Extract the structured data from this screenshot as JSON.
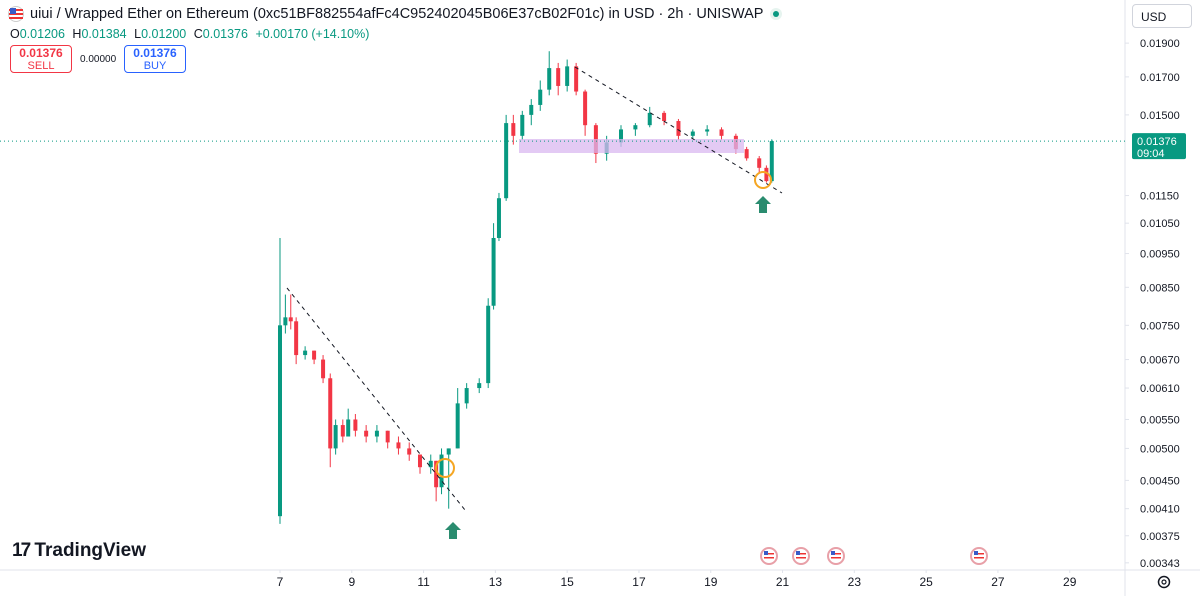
{
  "header": {
    "title": "uiui / Wrapped Ether on Ethereum (0xc51BF882554afFc4C952402045B06E37cB02F01c) in USD · 2h · UNISWAP",
    "ohlc": [
      {
        "label": "O",
        "value": "0.01206"
      },
      {
        "label": "H",
        "value": "0.01384"
      },
      {
        "label": "L",
        "value": "0.01200"
      },
      {
        "label": "C",
        "value": "0.01376"
      }
    ],
    "change": "+0.00170 (+14.10%)",
    "sell": {
      "price": "0.01376",
      "label": "SELL"
    },
    "spread": "0.00000",
    "buy": {
      "price": "0.01376",
      "label": "BUY"
    },
    "currency": "USD",
    "brand": "TradingView"
  },
  "chart_data": {
    "type": "candlestick",
    "log_scale": true,
    "grid": false,
    "up_color": "#089981",
    "down_color": "#f23645",
    "x": [
      7.0,
      7.15,
      7.3,
      7.45,
      7.7,
      7.95,
      8.2,
      8.4,
      8.55,
      8.75,
      8.9,
      9.1,
      9.4,
      9.7,
      10.0,
      10.3,
      10.6,
      10.9,
      11.2,
      11.35,
      11.5,
      11.7,
      11.95,
      12.2,
      12.55,
      12.8,
      12.95,
      13.1,
      13.3,
      13.5,
      13.75,
      14.0,
      14.25,
      14.5,
      14.75,
      15.0,
      15.25,
      15.5,
      15.8,
      16.1,
      16.5,
      16.9,
      17.3,
      17.7,
      18.1,
      18.5,
      18.9,
      19.3,
      19.7,
      20.0,
      20.35,
      20.55,
      20.7
    ],
    "open": [
      0.004,
      0.0075,
      0.0077,
      0.0076,
      0.0068,
      0.0069,
      0.0067,
      0.0063,
      0.005,
      0.0054,
      0.0052,
      0.0055,
      0.0053,
      0.0052,
      0.0053,
      0.0051,
      0.005,
      0.0049,
      0.0047,
      0.0048,
      0.0044,
      0.0049,
      0.005,
      0.0058,
      0.0061,
      0.0062,
      0.008,
      0.01,
      0.0114,
      0.0146,
      0.014,
      0.015,
      0.0155,
      0.0163,
      0.0175,
      0.0165,
      0.0176,
      0.0162,
      0.0145,
      0.0132,
      0.0137,
      0.0143,
      0.0145,
      0.0151,
      0.0147,
      0.014,
      0.0142,
      0.0143,
      0.014,
      0.0134,
      0.013,
      0.0126,
      0.01206
    ],
    "high": [
      0.01,
      0.0083,
      0.0083,
      0.0077,
      0.007,
      0.0069,
      0.0068,
      0.0064,
      0.0055,
      0.0055,
      0.0057,
      0.0056,
      0.0054,
      0.0054,
      0.0053,
      0.0052,
      0.0051,
      0.0049,
      0.0049,
      0.0048,
      0.005,
      0.005,
      0.0061,
      0.0062,
      0.0063,
      0.0082,
      0.0105,
      0.0116,
      0.015,
      0.015,
      0.0152,
      0.0158,
      0.0168,
      0.0185,
      0.0178,
      0.018,
      0.0178,
      0.0163,
      0.0146,
      0.014,
      0.0145,
      0.0146,
      0.0154,
      0.0152,
      0.0148,
      0.0143,
      0.0145,
      0.0144,
      0.0141,
      0.0135,
      0.0131,
      0.0127,
      0.01384
    ],
    "low": [
      0.0039,
      0.0073,
      0.0074,
      0.0066,
      0.0067,
      0.0066,
      0.0062,
      0.0047,
      0.0049,
      0.0051,
      0.0052,
      0.0052,
      0.0051,
      0.0051,
      0.005,
      0.0049,
      0.0048,
      0.0046,
      0.0046,
      0.0042,
      0.0043,
      0.0041,
      0.005,
      0.0057,
      0.006,
      0.0061,
      0.0079,
      0.0099,
      0.0113,
      0.0136,
      0.0138,
      0.0145,
      0.0152,
      0.016,
      0.016,
      0.0162,
      0.016,
      0.014,
      0.0128,
      0.0129,
      0.0135,
      0.014,
      0.0144,
      0.0145,
      0.0138,
      0.0139,
      0.014,
      0.0138,
      0.0132,
      0.0129,
      0.0124,
      0.012,
      0.012
    ],
    "close": [
      0.0075,
      0.0077,
      0.0076,
      0.0068,
      0.0069,
      0.0067,
      0.0063,
      0.005,
      0.0054,
      0.0052,
      0.0055,
      0.0053,
      0.0052,
      0.0053,
      0.0051,
      0.005,
      0.0049,
      0.0047,
      0.0048,
      0.0044,
      0.0049,
      0.005,
      0.0058,
      0.0061,
      0.0062,
      0.008,
      0.01,
      0.0114,
      0.0146,
      0.014,
      0.015,
      0.0155,
      0.0163,
      0.0175,
      0.0165,
      0.0176,
      0.0162,
      0.0145,
      0.0132,
      0.0137,
      0.0143,
      0.0145,
      0.0151,
      0.0147,
      0.014,
      0.0142,
      0.0143,
      0.014,
      0.0134,
      0.013,
      0.0126,
      0.01206,
      0.01376
    ],
    "xlim": [
      -0.8,
      30.54
    ],
    "xticks": [
      7,
      9,
      11,
      13,
      15,
      17,
      19,
      21,
      23,
      25,
      27,
      29
    ],
    "ylim": [
      0.00335,
      0.0219
    ],
    "yticks": [
      {
        "value": 0.019,
        "label": "0.01900"
      },
      {
        "value": 0.017,
        "label": "0.01700"
      },
      {
        "value": 0.015,
        "label": "0.01500"
      },
      {
        "value": 0.0115,
        "label": "0.01150"
      },
      {
        "value": 0.0105,
        "label": "0.01050"
      },
      {
        "value": 0.0095,
        "label": "0.00950"
      },
      {
        "value": 0.0085,
        "label": "0.00850"
      },
      {
        "value": 0.0075,
        "label": "0.00750"
      },
      {
        "value": 0.0067,
        "label": "0.00670"
      },
      {
        "value": 0.0061,
        "label": "0.00610"
      },
      {
        "value": 0.0055,
        "label": "0.00550"
      },
      {
        "value": 0.005,
        "label": "0.00500"
      },
      {
        "value": 0.0045,
        "label": "0.00450"
      },
      {
        "value": 0.0041,
        "label": "0.00410"
      },
      {
        "value": 0.00375,
        "label": "0.00375"
      },
      {
        "value": 0.00343,
        "label": "0.00343"
      }
    ],
    "last_price": 0.01376,
    "countdown": "09:04"
  }
}
